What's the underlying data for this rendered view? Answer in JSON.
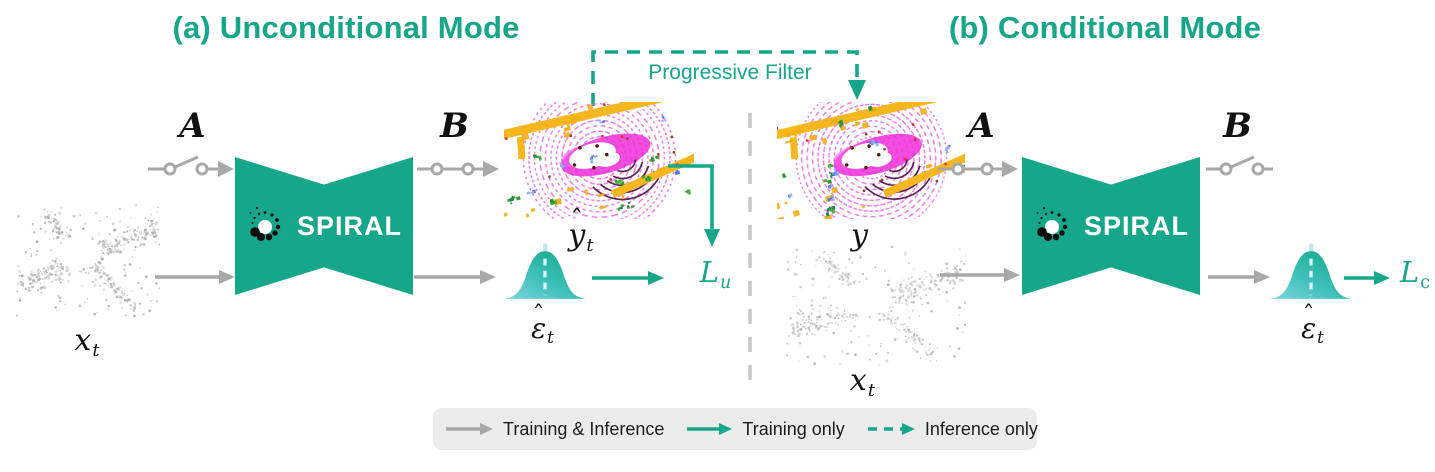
{
  "figure": {
    "panel_a": {
      "title": "(a) Unconditional Mode",
      "input_switch_label": "A",
      "output_switch_label": "B",
      "block_label": "SPIRAL",
      "input_pointcloud_label": {
        "base": "x",
        "sub": "t"
      },
      "scene_pointcloud_label": {
        "hat": "ˆ",
        "base": "y",
        "sub": "t"
      },
      "noise_output_label": {
        "hat": "ˆ",
        "base": "ε",
        "sub": "t"
      },
      "loss_label": {
        "base": "L",
        "sub": "u"
      }
    },
    "panel_b": {
      "title": "(b) Conditional Mode",
      "input_switch_label": "A",
      "output_switch_label": "B",
      "block_label": "SPIRAL",
      "condition_pointcloud_label": {
        "base": "y",
        "sub": ""
      },
      "input_pointcloud_label": {
        "base": "x",
        "sub": "t"
      },
      "noise_output_label": {
        "hat": "ˆ",
        "base": "ε",
        "sub": "t"
      },
      "loss_label": {
        "base": "L",
        "sub": "c"
      }
    },
    "progressive_filter_label": "Progressive Filter",
    "legend": {
      "items": [
        {
          "label": "Training & Inference",
          "arrow_style": "gray-solid"
        },
        {
          "label": "Training only",
          "arrow_style": "green-solid"
        },
        {
          "label": "Inference only",
          "arrow_style": "green-dashed"
        }
      ]
    },
    "colors": {
      "accent_green": "#16a78a",
      "arrow_gray": "#a8a8a8",
      "divider_gray": "#c8c8c8",
      "legend_background": "#ececec",
      "bell_gradient_start": "#7fd6e0",
      "bell_gradient_end": "#12a584"
    }
  }
}
